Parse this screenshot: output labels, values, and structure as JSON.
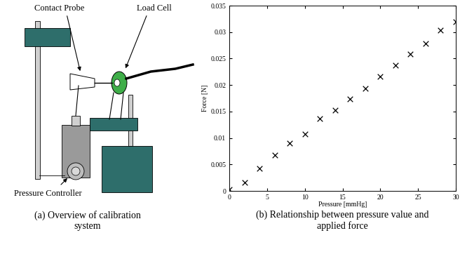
{
  "diagram": {
    "labels": {
      "contact_probe": "Contact Probe",
      "load_cell": "Load Cell",
      "pressure_controller": "Pressure Controller"
    }
  },
  "captions": [
    "(a) Overview of calibration system",
    "(b) Relationship between pressure value and applied force"
  ],
  "chart_data": {
    "type": "scatter",
    "x_label": "Pressure [mmHg]",
    "y_label": "Force [N]",
    "x": [
      0,
      2,
      4,
      6,
      8,
      10,
      12,
      14,
      16,
      18,
      20,
      22,
      24,
      26,
      28,
      30
    ],
    "values": [
      0.0003,
      0.0016,
      0.0043,
      0.0068,
      0.009,
      0.0108,
      0.0137,
      0.0153,
      0.0174,
      0.0194,
      0.0216,
      0.0237,
      0.0259,
      0.0278,
      0.0304,
      0.032
    ],
    "color": "#000000",
    "marker": "x",
    "xlim": [
      0,
      30
    ],
    "ylim": [
      0,
      0.035
    ],
    "xticks": [
      0,
      5,
      10,
      15,
      20,
      25,
      30
    ],
    "yticks": [
      0,
      0.005,
      0.01,
      0.015,
      0.02,
      0.025,
      0.03,
      0.035
    ],
    "grid": false
  }
}
